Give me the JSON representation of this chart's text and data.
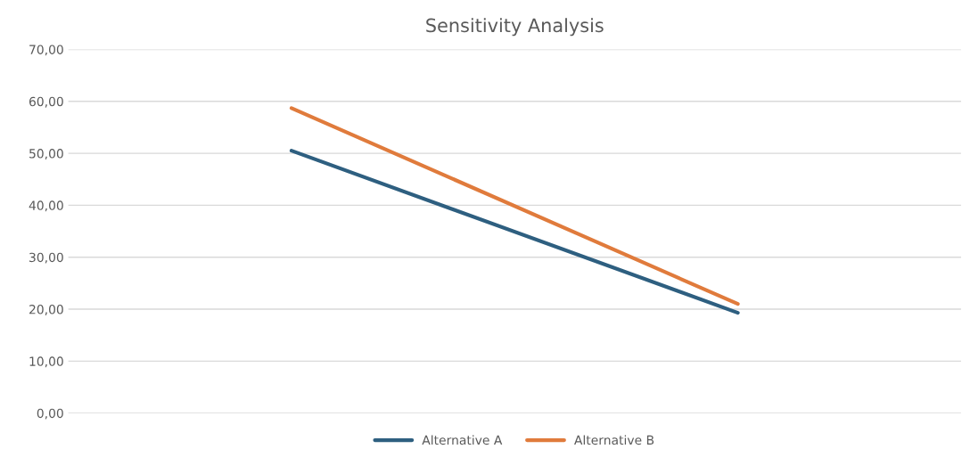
{
  "chart_data": {
    "type": "line",
    "title": "Sensitivity Analysis",
    "categories": [
      null,
      null
    ],
    "series": [
      {
        "name": "Alternative A",
        "color": "#2e5f80",
        "values": [
          50.5,
          19.3
        ]
      },
      {
        "name": "Alternative B",
        "color": "#e07b3c",
        "values": [
          58.7,
          21.0
        ]
      }
    ],
    "ylim": [
      0,
      70
    ],
    "yticks": [
      {
        "value": 0,
        "label": "0,00"
      },
      {
        "value": 10,
        "label": "10,00"
      },
      {
        "value": 20,
        "label": "20,00"
      },
      {
        "value": 30,
        "label": "30,00"
      },
      {
        "value": 40,
        "label": "40,00"
      },
      {
        "value": 50,
        "label": "50,00"
      },
      {
        "value": 60,
        "label": "60,00"
      },
      {
        "value": 70,
        "label": "70,00"
      }
    ],
    "grid": "y",
    "legend": "bottom",
    "marker": "none",
    "line_style": "solid"
  }
}
